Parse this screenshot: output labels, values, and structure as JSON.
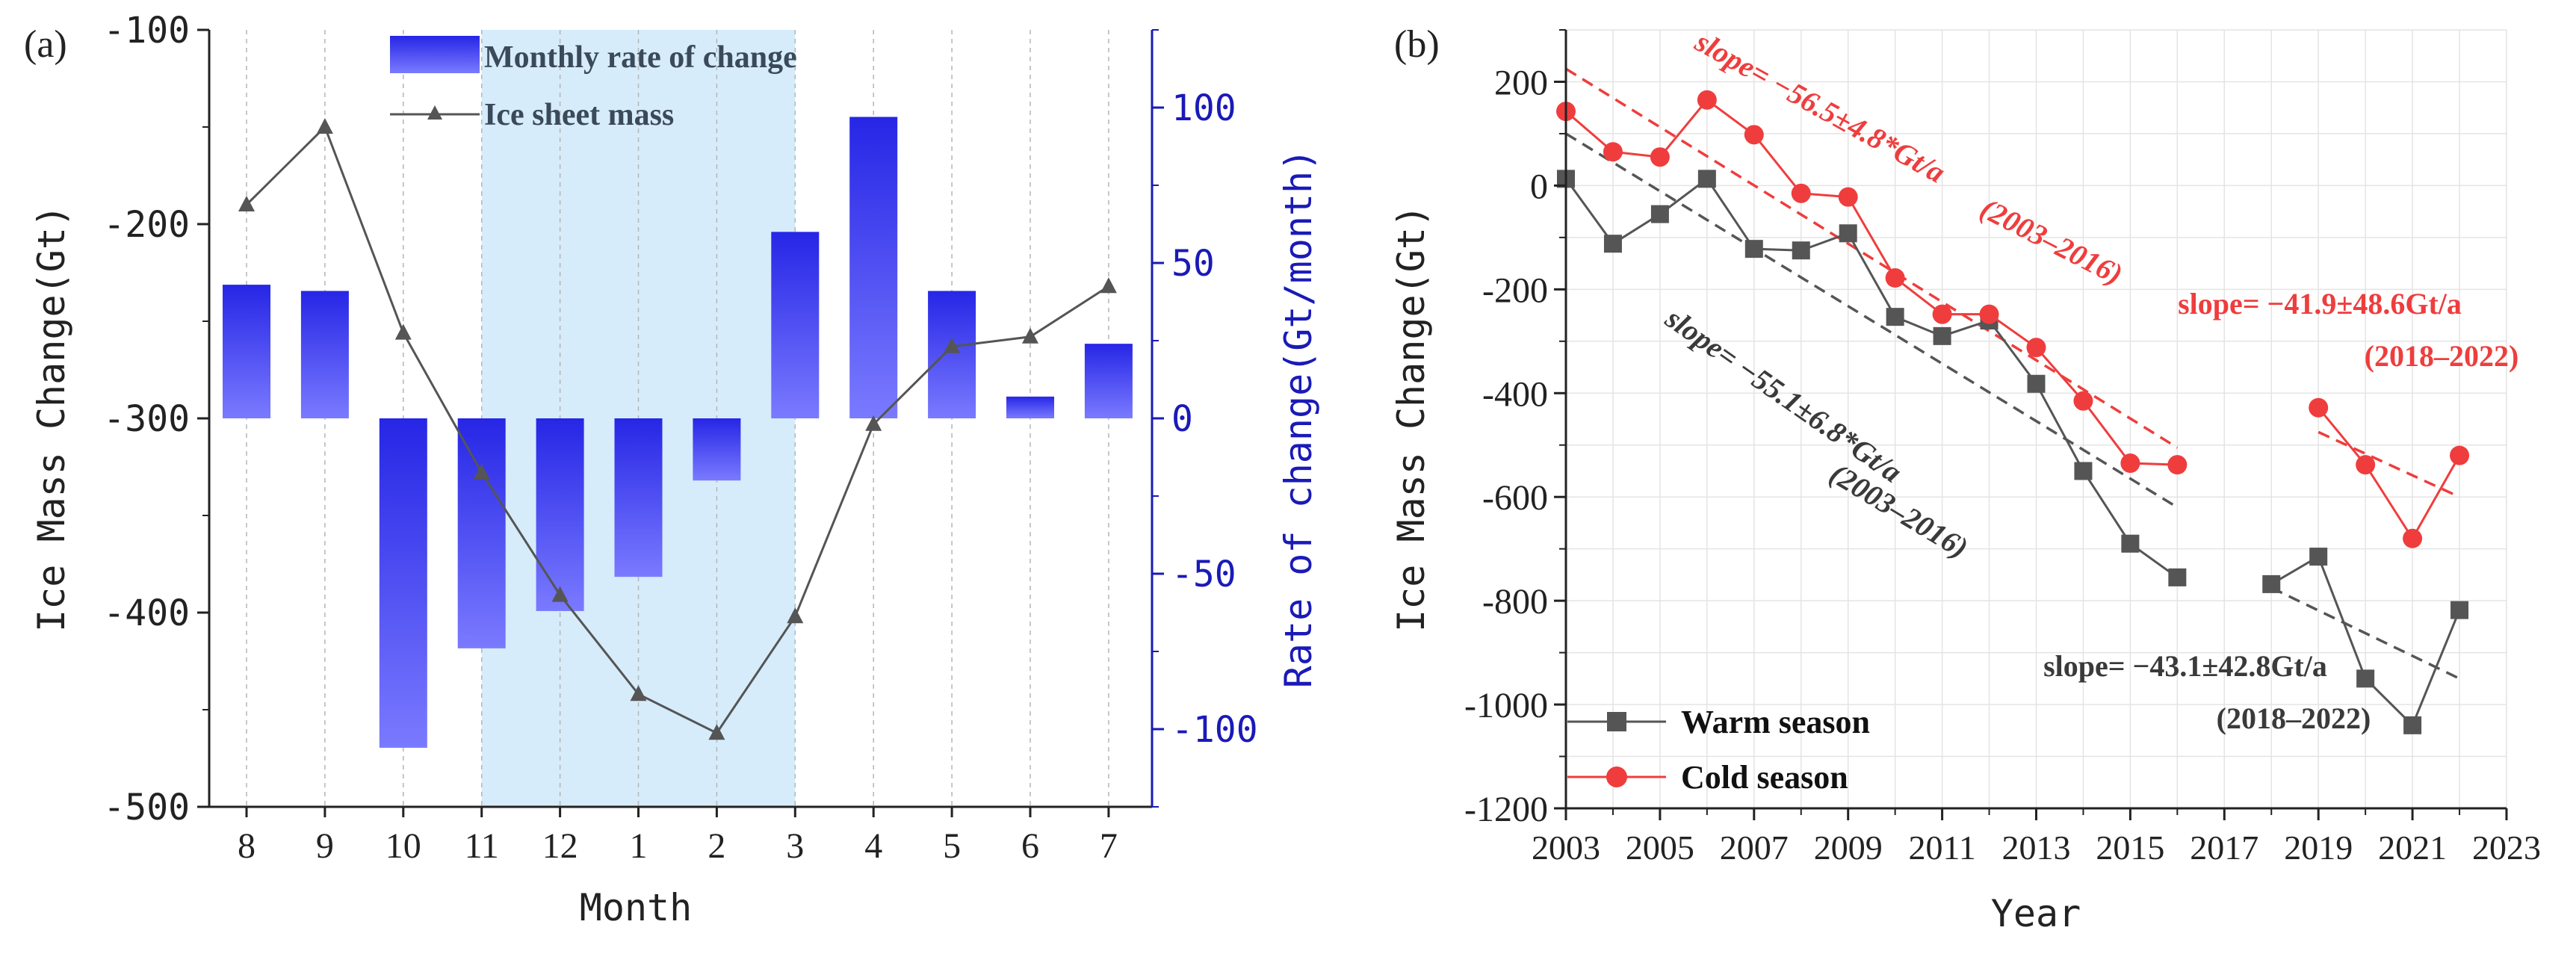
{
  "colors": {
    "bar_top": "#2626e6",
    "bar_bottom": "#7a7aff",
    "shade": "#d6ecfb",
    "dark": "#555555",
    "red": "#ef3d3d",
    "blue_axis": "#1a1ab8",
    "black": "#222222",
    "grid": "#e4e4e4"
  },
  "chart_data": [
    {
      "panel_label": "(a)",
      "type": "bar+line",
      "xlabel": "Month",
      "ylabel_left": "Ice Mass Change(Gt)",
      "ylabel_right": "Rate of change(Gt/month)",
      "categories": [
        "8",
        "9",
        "10",
        "11",
        "12",
        "1",
        "2",
        "3",
        "4",
        "5",
        "6",
        "7"
      ],
      "left_ylim": [
        -500,
        -100
      ],
      "left_ticks": [
        -500,
        -400,
        -300,
        -200,
        -100
      ],
      "left_tick_labels": [
        "-500",
        "-400",
        "-300",
        "-200",
        "-100"
      ],
      "right_ylim": [
        -125,
        125
      ],
      "right_ticks": [
        -100,
        -50,
        0,
        50,
        100
      ],
      "right_tick_labels": [
        "-100",
        "-50",
        "0",
        "50",
        "100"
      ],
      "shaded_range": [
        "11",
        "3"
      ],
      "bar_series": {
        "name": "Monthly rate of change",
        "axis": "right",
        "values": [
          43,
          41,
          -106,
          -74,
          -62,
          -51,
          -20,
          60,
          97,
          41,
          7,
          24
        ]
      },
      "line_series": {
        "name": "Ice sheet mass",
        "axis": "left",
        "values": [
          -190,
          -150,
          -256,
          -328,
          -391,
          -442,
          -462,
          -402,
          -303,
          -263,
          -258,
          -232
        ]
      }
    },
    {
      "panel_label": "(b)",
      "type": "line",
      "xlabel": "Year",
      "ylabel": "Ice Mass Change(Gt)",
      "xlim": [
        2003,
        2023
      ],
      "xticks": [
        2003,
        2005,
        2007,
        2009,
        2011,
        2013,
        2015,
        2017,
        2019,
        2021,
        2023
      ],
      "xtick_labels": [
        "2003",
        "2005",
        "2007",
        "2009",
        "2011",
        "2013",
        "2015",
        "2017",
        "2019",
        "2021",
        "2023"
      ],
      "ylim": [
        -1200,
        300
      ],
      "yticks": [
        -1200,
        -1000,
        -800,
        -600,
        -400,
        -200,
        0,
        200
      ],
      "ytick_labels": [
        "-1200",
        "-1000",
        "-800",
        "-600",
        "-400",
        "-200",
        "0",
        "200"
      ],
      "grid": true,
      "legend_position": "bottom-left",
      "series": [
        {
          "name": "Warm season",
          "marker": "square",
          "segments": [
            {
              "x": [
                2003,
                2004,
                2005,
                2006,
                2007,
                2008,
                2009,
                2010,
                2011,
                2012,
                2013,
                2014,
                2015,
                2016
              ],
              "y": [
                13,
                -112,
                -55,
                13,
                -122,
                -125,
                -92,
                -253,
                -290,
                -260,
                -382,
                -550,
                -690,
                -755
              ]
            },
            {
              "x": [
                2018,
                2019,
                2020,
                2021,
                2022
              ],
              "y": [
                -768,
                -715,
                -950,
                -1040,
                -818
              ]
            }
          ]
        },
        {
          "name": "Cold season",
          "marker": "circle",
          "segments": [
            {
              "x": [
                2003,
                2004,
                2005,
                2006,
                2007,
                2008,
                2009,
                2010,
                2011,
                2012,
                2013,
                2014,
                2015,
                2016
              ],
              "y": [
                143,
                65,
                55,
                165,
                98,
                -15,
                -22,
                -178,
                -248,
                -248,
                -312,
                -415,
                -535,
                -538
              ]
            },
            {
              "x": [
                2019,
                2020,
                2021,
                2022
              ],
              "y": [
                -428,
                -538,
                -680,
                -520
              ]
            }
          ]
        }
      ],
      "trend_lines": [
        {
          "series": "Warm season",
          "x": [
            2003,
            2016
          ],
          "y": [
            100,
            -620
          ],
          "slope_label": "slope= −55.1±6.8*Gt/a",
          "period_label": "(2003–2016)"
        },
        {
          "series": "Warm season",
          "x": [
            2018,
            2022
          ],
          "y": [
            -775,
            -950
          ],
          "slope_label": "slope= −43.1±42.8Gt/a",
          "period_label": "(2018–2022)"
        },
        {
          "series": "Cold season",
          "x": [
            2003,
            2016
          ],
          "y": [
            225,
            -505
          ],
          "slope_label": "slope= −56.5±4.8*Gt/a",
          "period_label": "(2003–2016)"
        },
        {
          "series": "Cold season",
          "x": [
            2019,
            2022
          ],
          "y": [
            -475,
            -600
          ],
          "slope_label": "slope= −41.9±48.6Gt/a",
          "period_label": "(2018–2022)"
        }
      ]
    }
  ]
}
